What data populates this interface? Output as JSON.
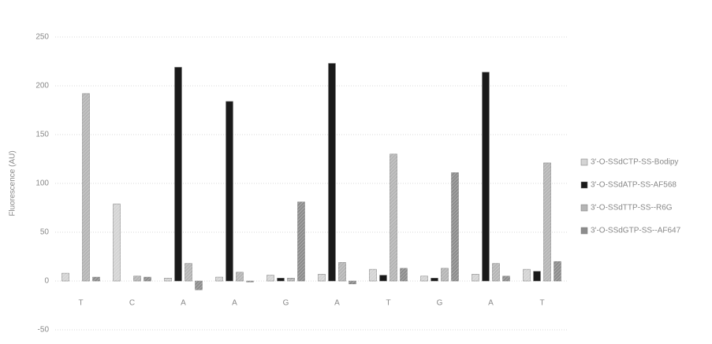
{
  "chart_data": {
    "type": "bar",
    "y_label": "Fluorescence (AU)",
    "categories": [
      "T",
      "C",
      "A",
      "A",
      "G",
      "A",
      "T",
      "G",
      "A",
      "T"
    ],
    "series": [
      {
        "name": "3'-O-SSdCTP-SS-Bodipy",
        "color": "#d4d4d4",
        "values": [
          8,
          79,
          3,
          4,
          6,
          7,
          12,
          5,
          7,
          12
        ]
      },
      {
        "name": "3'-O-SSdATP-SS-AF568",
        "color": "#1a1a1a",
        "values": [
          0,
          0,
          219,
          184,
          3,
          223,
          6,
          3,
          214,
          10
        ]
      },
      {
        "name": "3'-O-SSdTTP-SS--R6G",
        "color": "#b5b5b5",
        "values": [
          192,
          5,
          18,
          9,
          3,
          19,
          130,
          13,
          18,
          121
        ]
      },
      {
        "name": "3'-O-SSdGTP-SS--AF647",
        "color": "#8c8c8c",
        "values": [
          4,
          4,
          -9,
          -1,
          81,
          -3,
          13,
          111,
          5,
          20
        ]
      }
    ],
    "ylim": [
      -50,
      250
    ],
    "yticks": [
      -50,
      0,
      50,
      100,
      150,
      200,
      250
    ],
    "grid": true,
    "legend": "right"
  }
}
